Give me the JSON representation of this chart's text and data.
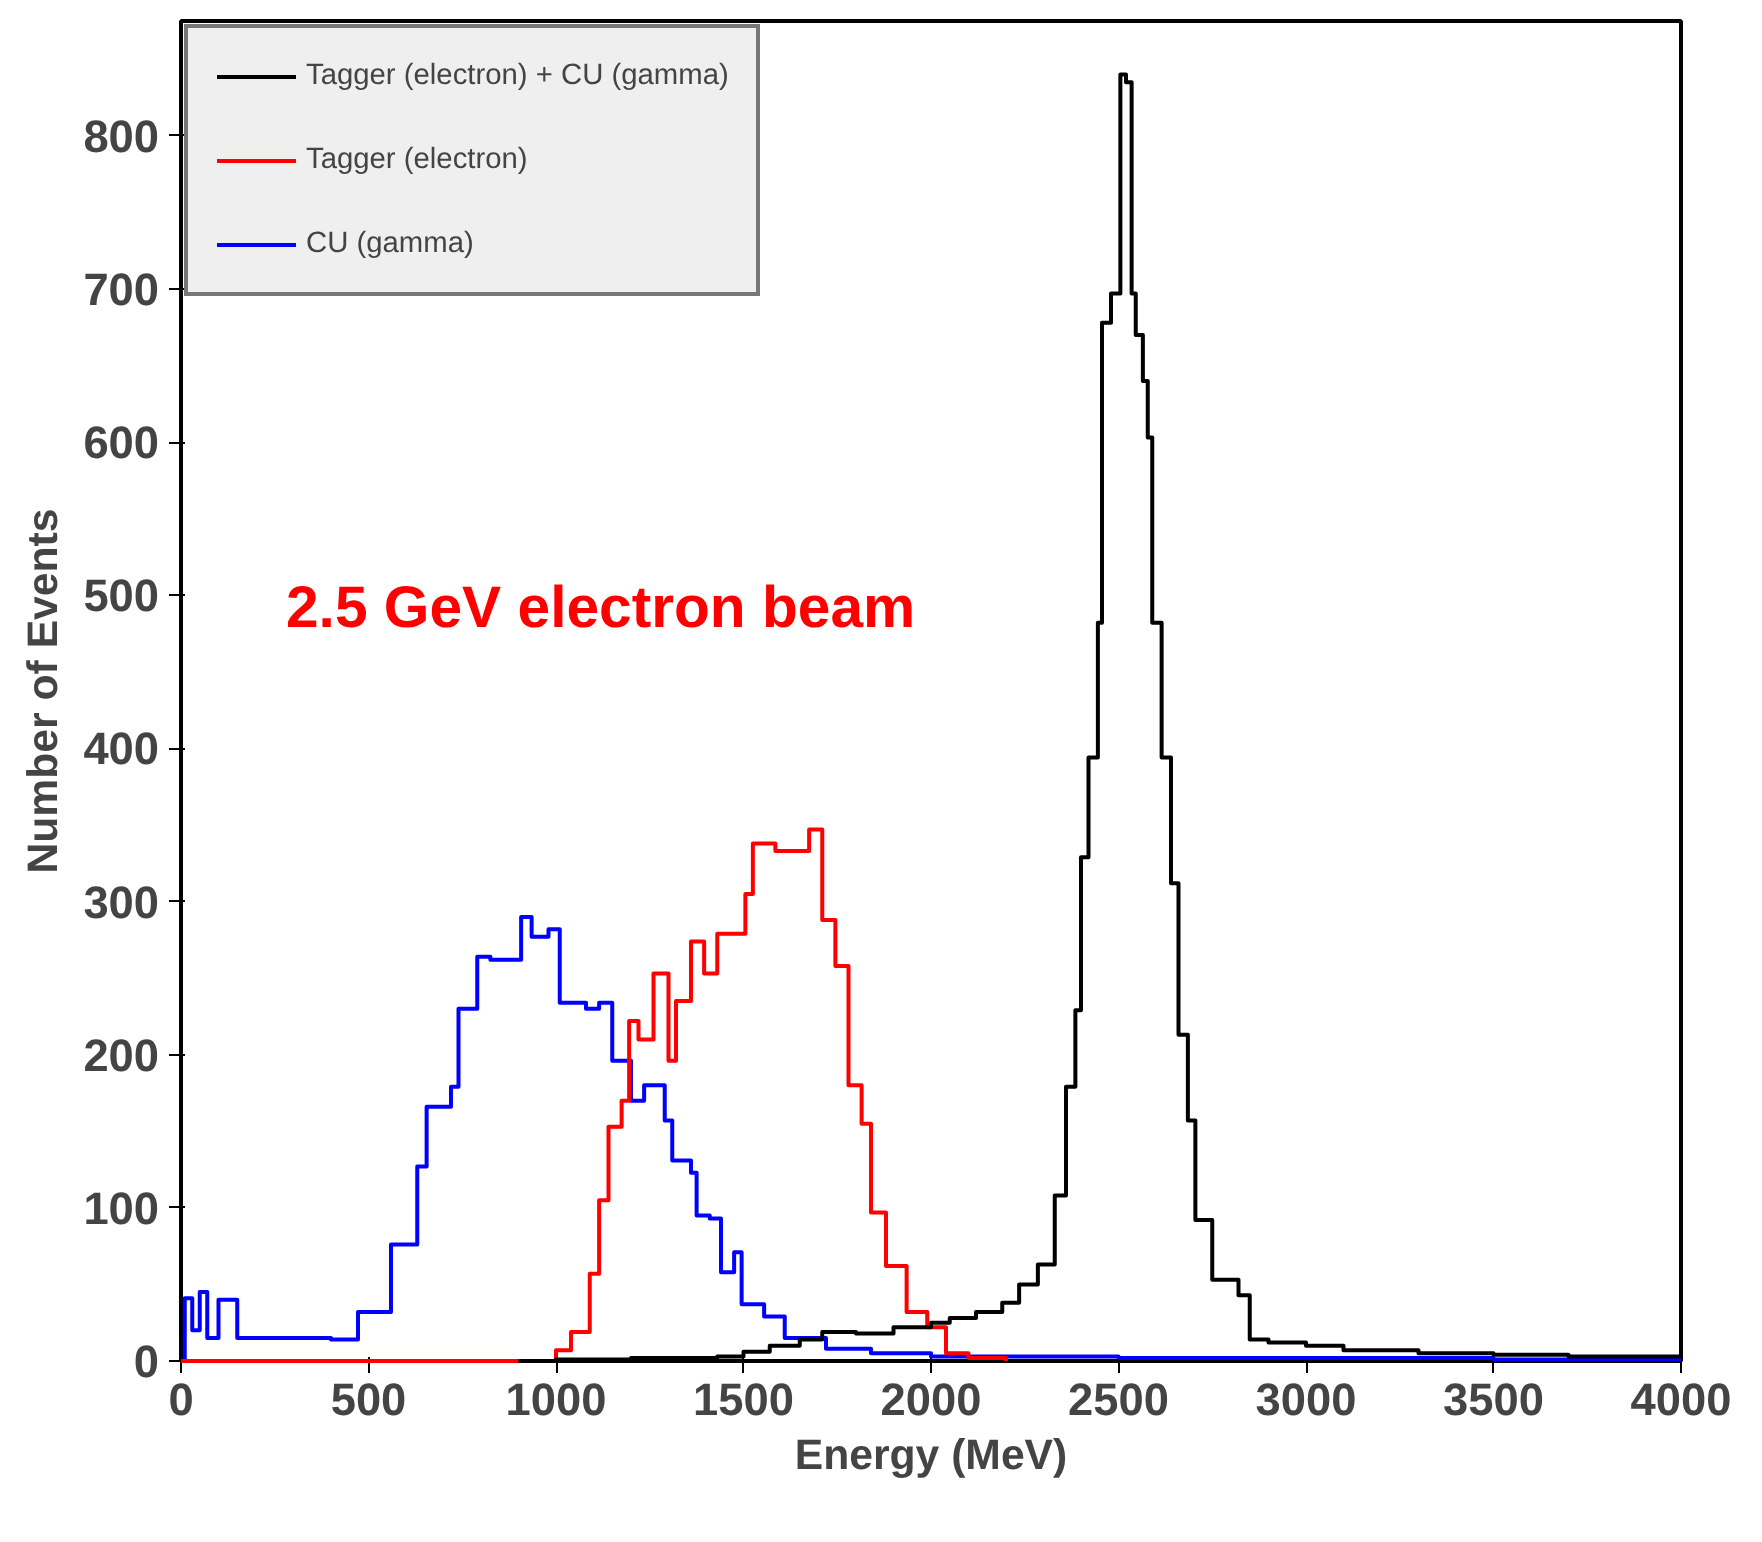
{
  "chart_data": {
    "type": "step",
    "xlabel": "Energy (MeV)",
    "ylabel": "Number of Events",
    "xlim": [
      0,
      4000
    ],
    "ylim": [
      0,
      875
    ],
    "xticks": [
      0,
      500,
      1000,
      1500,
      2000,
      2500,
      3000,
      3500,
      4000
    ],
    "yticks": [
      0,
      100,
      200,
      300,
      400,
      500,
      600,
      700,
      800
    ],
    "grid": false,
    "legend": "top left",
    "annotations": [
      "2.5 GeV electron beam"
    ],
    "series": [
      {
        "name": "Tagger (electron) + CU (gamma)",
        "color": "#000000",
        "x": [
          900,
          1000,
          1200,
          1300,
          1430,
          1500,
          1570,
          1650,
          1710,
          1800,
          1900,
          2000,
          2050,
          2120,
          2190,
          2235,
          2285,
          2330,
          2360,
          2385,
          2400,
          2420,
          2445,
          2456,
          2480,
          2505,
          2520,
          2535,
          2546,
          2565,
          2578,
          2590,
          2615,
          2640,
          2660,
          2685,
          2705,
          2750,
          2820,
          2850,
          2900,
          3000,
          3100,
          3300,
          3500,
          3700,
          4000
        ],
        "values": [
          0,
          1,
          2,
          2,
          3,
          6,
          10,
          14,
          19,
          18,
          22,
          25,
          28,
          32,
          38,
          50,
          63,
          108,
          179,
          229,
          329,
          394,
          482,
          678,
          697,
          840,
          835,
          697,
          670,
          640,
          603,
          482,
          394,
          312,
          213,
          157,
          92,
          53,
          43,
          14,
          12,
          10,
          7,
          5,
          4,
          3,
          2
        ]
      },
      {
        "name": "Tagger (electron)",
        "color": "#ff0000",
        "x": [
          0,
          950,
          1000,
          1040,
          1090,
          1115,
          1140,
          1175,
          1195,
          1220,
          1260,
          1300,
          1320,
          1360,
          1395,
          1430,
          1480,
          1505,
          1525,
          1585,
          1640,
          1675,
          1710,
          1745,
          1780,
          1815,
          1840,
          1880,
          1935,
          1990,
          2040,
          2100,
          2200
        ],
        "values": [
          0,
          0,
          7,
          19,
          57,
          105,
          153,
          170,
          222,
          210,
          253,
          196,
          235,
          274,
          253,
          279,
          279,
          305,
          338,
          333,
          333,
          347,
          288,
          258,
          180,
          155,
          97,
          62,
          32,
          22,
          5,
          2,
          0
        ]
      },
      {
        "name": "CU (gamma)",
        "color": "#0000ff",
        "x": [
          0,
          10,
          30,
          50,
          70,
          100,
          150,
          250,
          400,
          472,
          560,
          630,
          655,
          720,
          740,
          790,
          825,
          907,
          935,
          980,
          1010,
          1080,
          1115,
          1150,
          1200,
          1235,
          1290,
          1310,
          1360,
          1375,
          1410,
          1440,
          1475,
          1495,
          1555,
          1610,
          1720,
          1840,
          2000,
          2500,
          3000,
          3500,
          4000
        ],
        "values": [
          0,
          41,
          20,
          45,
          15,
          40,
          15,
          15,
          14,
          32,
          76,
          127,
          166,
          179,
          230,
          264,
          262,
          290,
          277,
          282,
          234,
          230,
          234,
          196,
          170,
          180,
          157,
          131,
          123,
          95,
          93,
          58,
          71,
          37,
          29,
          15,
          8,
          5,
          3,
          2,
          2,
          1,
          1
        ]
      }
    ]
  }
}
